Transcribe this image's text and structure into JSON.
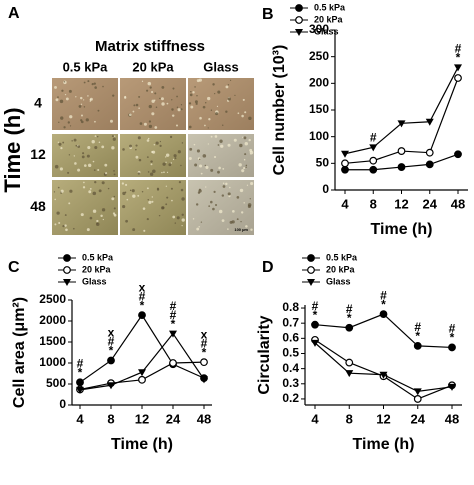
{
  "panel_a": {
    "panel": "A",
    "title": "Matrix stiffness",
    "columns": [
      "0.5 kPa",
      "20 kPa",
      "Glass"
    ],
    "rows": [
      "4",
      "12",
      "48"
    ],
    "row_axis_label": "Time (h)",
    "scale_bar": "100 µm"
  },
  "chart_data": [
    {
      "type": "line",
      "panel": "B",
      "x_label": "Time (h)",
      "y_label": "Cell number (10³)",
      "categories": [
        "4",
        "8",
        "12",
        "24",
        "48"
      ],
      "ylim": [
        0,
        300
      ],
      "yticks": [
        0,
        50,
        100,
        150,
        200,
        250,
        300
      ],
      "series": [
        {
          "name": "0.5 kPa",
          "color": "#000000",
          "marker": "filled-circle",
          "values": [
            38,
            38,
            43,
            48,
            67
          ]
        },
        {
          "name": "20 kPa",
          "color": "#000000",
          "marker": "open-circle",
          "values": [
            50,
            55,
            73,
            70,
            210
          ]
        },
        {
          "name": "Glass",
          "color": "#000000",
          "marker": "triangle-down",
          "values": [
            68,
            80,
            125,
            128,
            230
          ]
        }
      ],
      "annotations": [
        {
          "x": "8",
          "labels": [
            "#"
          ]
        },
        {
          "x": "48",
          "labels": [
            "#",
            "*"
          ]
        }
      ]
    },
    {
      "type": "line",
      "panel": "C",
      "x_label": "Time (h)",
      "y_label": "Cell area (μm²)",
      "categories": [
        "4",
        "8",
        "12",
        "24",
        "48"
      ],
      "ylim": [
        0,
        2500
      ],
      "yticks": [
        0,
        500,
        1000,
        1500,
        2000,
        2500
      ],
      "series": [
        {
          "name": "0.5 kPa",
          "color": "#000000",
          "marker": "filled-circle",
          "values": [
            540,
            1060,
            2140,
            970,
            640
          ]
        },
        {
          "name": "20 kPa",
          "color": "#000000",
          "marker": "open-circle",
          "values": [
            370,
            520,
            600,
            1000,
            1020
          ]
        },
        {
          "name": "Glass",
          "color": "#000000",
          "marker": "triangle-down",
          "values": [
            360,
            470,
            780,
            1700,
            610
          ]
        }
      ],
      "annotations": [
        {
          "x": "4",
          "labels": [
            "#",
            "*"
          ]
        },
        {
          "x": "8",
          "labels": [
            "x",
            "#",
            "*"
          ]
        },
        {
          "x": "12",
          "labels": [
            "x",
            "#",
            "*"
          ]
        },
        {
          "x": "24",
          "labels": [
            "#",
            "#",
            "*"
          ]
        },
        {
          "x": "48",
          "labels": [
            "x",
            "#",
            "*"
          ]
        }
      ]
    },
    {
      "type": "line",
      "panel": "D",
      "x_label": "Time (h)",
      "y_label": "Circularity",
      "categories": [
        "4",
        "8",
        "12",
        "24",
        "48"
      ],
      "ylim": [
        0.16,
        0.82
      ],
      "yticks": [
        0.2,
        0.3,
        0.4,
        0.5,
        0.6,
        0.7,
        0.8
      ],
      "series": [
        {
          "name": "0.5 kPa",
          "color": "#000000",
          "marker": "filled-circle",
          "values": [
            0.69,
            0.67,
            0.76,
            0.55,
            0.54
          ]
        },
        {
          "name": "20 kPa",
          "color": "#000000",
          "marker": "open-circle",
          "values": [
            0.59,
            0.44,
            0.35,
            0.2,
            0.29
          ]
        },
        {
          "name": "Glass",
          "color": "#000000",
          "marker": "triangle-down",
          "values": [
            0.57,
            0.37,
            0.36,
            0.25,
            0.28
          ]
        }
      ],
      "annotations": [
        {
          "x": "4",
          "labels": [
            "#",
            "*"
          ]
        },
        {
          "x": "8",
          "labels": [
            "#",
            "*"
          ]
        },
        {
          "x": "12",
          "labels": [
            "#",
            "*"
          ]
        },
        {
          "x": "24",
          "labels": [
            "#",
            "*"
          ]
        },
        {
          "x": "48",
          "labels": [
            "#",
            "*"
          ]
        }
      ]
    }
  ]
}
